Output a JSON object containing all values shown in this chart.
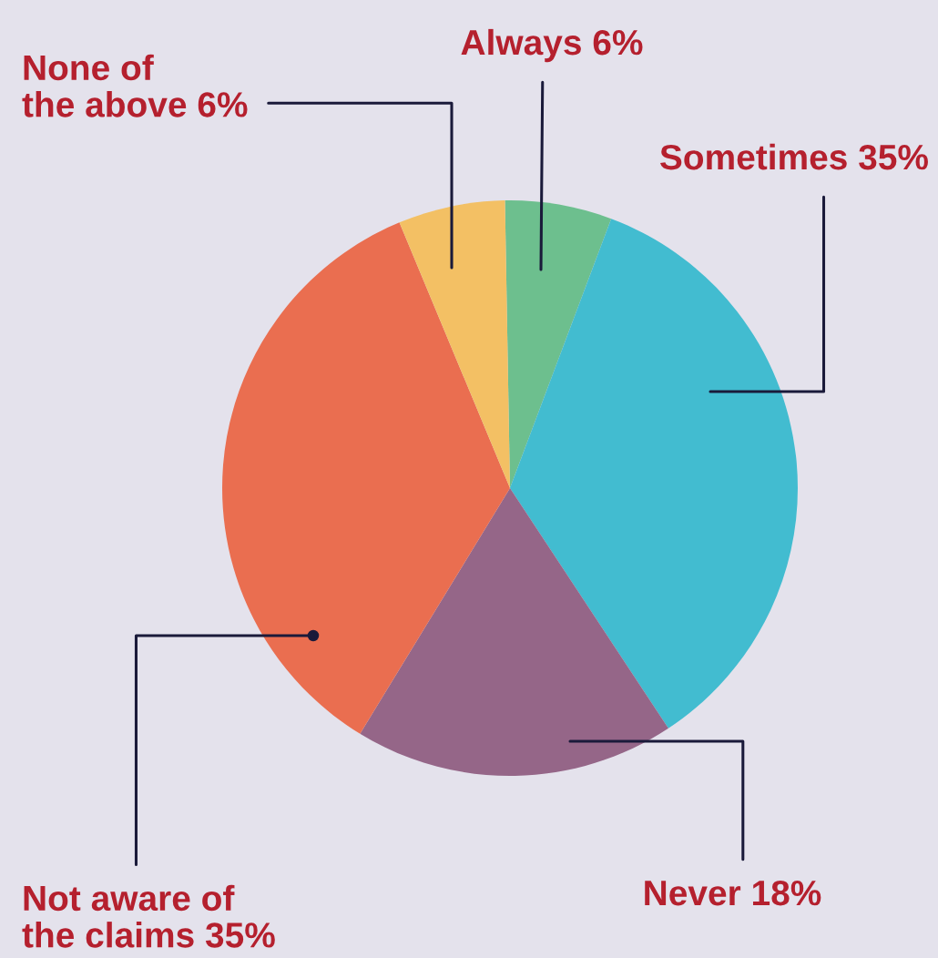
{
  "chart_data": {
    "type": "pie",
    "categories": [
      "Always",
      "Sometimes",
      "Never",
      "Not aware of the claims",
      "None of the above"
    ],
    "values": [
      6,
      35,
      18,
      35,
      6
    ],
    "value_labels": [
      "6%",
      "35%",
      "18%",
      "35%",
      "6%"
    ],
    "colors": [
      "#6dbf8e",
      "#42bcd0",
      "#956688",
      "#ea6e50",
      "#f3c064"
    ],
    "legend": false
  }
}
